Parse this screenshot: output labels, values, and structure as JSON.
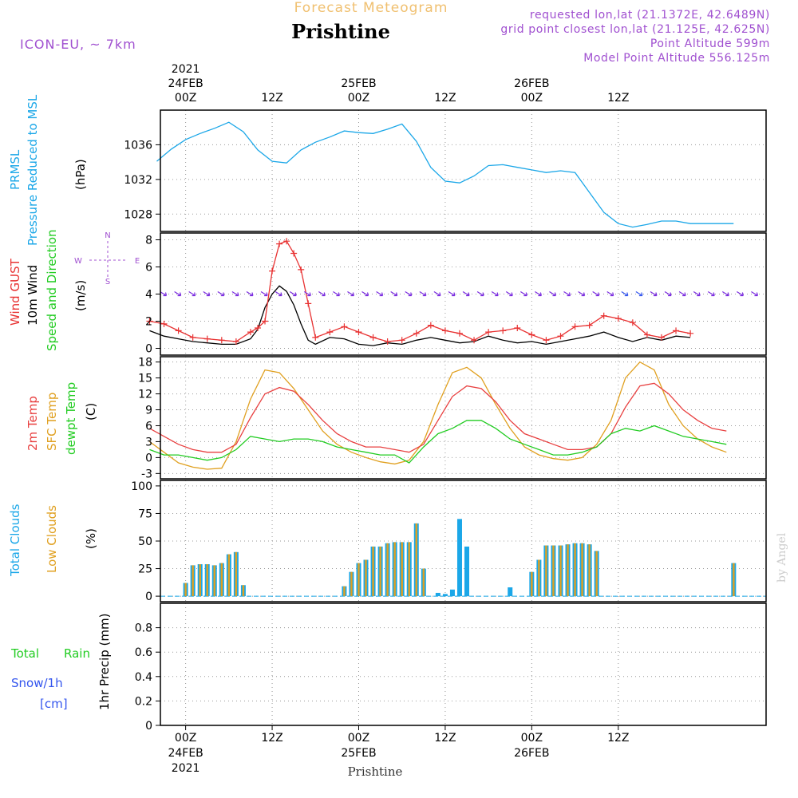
{
  "header": {
    "title": "Prishtine",
    "subtitle": "Forecast Meteogram",
    "model": "ICON-EU, ~ 7km",
    "requested": "requested lon,lat (21.1372E, 42.6489N)",
    "gridpoint": "grid point closest lon,lat (21.125E, 42.625N)",
    "altitude": "Point Altitude 599m",
    "model_altitude": "Model Point Altitude 556.125m",
    "watermark": "by Angel",
    "footer": "Prishtine"
  },
  "time_axis": {
    "top_labels": [
      {
        "l1": "2021",
        "l2": "24FEB",
        "l3": "00Z"
      },
      {
        "l1": "",
        "l2": "",
        "l3": "12Z"
      },
      {
        "l1": "",
        "l2": "25FEB",
        "l3": "00Z"
      },
      {
        "l1": "",
        "l2": "",
        "l3": "12Z"
      },
      {
        "l1": "",
        "l2": "26FEB",
        "l3": "00Z"
      },
      {
        "l1": "",
        "l2": "",
        "l3": "12Z"
      }
    ],
    "bottom_labels": [
      {
        "l1": "00Z",
        "l2": "24FEB",
        "l3": "2021"
      },
      {
        "l1": "12Z",
        "l2": "",
        "l3": ""
      },
      {
        "l1": "00Z",
        "l2": "25FEB",
        "l3": ""
      },
      {
        "l1": "12Z",
        "l2": "",
        "l3": ""
      },
      {
        "l1": "00Z",
        "l2": "26FEB",
        "l3": ""
      },
      {
        "l1": "12Z",
        "l2": "",
        "l3": ""
      }
    ]
  },
  "panel_labels": {
    "pressure": {
      "a": "PRMSL",
      "b": "Pressure Reduced to MSL",
      "unit": "(hPa)"
    },
    "wind": {
      "a": "Wind GUST",
      "b": "10m Wind",
      "c": "Speed and Direction",
      "unit": "(m/s)",
      "compass_n": "N",
      "compass_s": "S",
      "compass_w": "W",
      "compass_e": "E"
    },
    "temp": {
      "a": "2m Temp",
      "b": "SFC Temp",
      "c": "dewpt Temp",
      "unit": "(C)"
    },
    "clouds": {
      "a": "Total Clouds",
      "b": "Low Clouds",
      "unit": "(%)"
    },
    "precip": {
      "a": "Total",
      "a2": "Rain",
      "b": "Snow/1h",
      "c": "[cm]",
      "unit": "1hr Precip (mm)"
    }
  },
  "colors": {
    "pressure": "#1ba7e8",
    "gust": "#e83232",
    "wind": "#000000",
    "temp2m": "#e84040",
    "sfc": "#e0a020",
    "dewpt": "#22cc22",
    "total_clouds": "#1ba7e8",
    "low_clouds": "#e0a020",
    "rain": "#22cc22",
    "snow": "#3355ee",
    "header": "#a050d0",
    "subtitle": "#f0c070"
  },
  "chart_data": [
    {
      "type": "line",
      "panel": "pressure",
      "x_hours": [
        -4,
        -2,
        0,
        2,
        4,
        6,
        8,
        10,
        12,
        14,
        16,
        18,
        20,
        22,
        24,
        26,
        28,
        30,
        32,
        34,
        36,
        38,
        40,
        42,
        44,
        46,
        48,
        50,
        52,
        54,
        56,
        58,
        60,
        62,
        64,
        66,
        68,
        70,
        72,
        74,
        76
      ],
      "series": [
        {
          "name": "PRMSL",
          "values": [
            1034.1,
            1035.5,
            1036.6,
            1037.3,
            1037.9,
            1038.6,
            1037.5,
            1035.4,
            1034.1,
            1033.9,
            1035.4,
            1036.3,
            1036.9,
            1037.6,
            1037.4,
            1037.3,
            1037.8,
            1038.4,
            1036.4,
            1033.4,
            1031.8,
            1031.6,
            1032.4,
            1033.6,
            1033.7,
            1033.4,
            1033.1,
            1032.8,
            1033.0,
            1032.8,
            1030.5,
            1028.2,
            1026.9,
            1026.5,
            1026.8,
            1027.2,
            1027.2,
            1026.9,
            1026.9,
            1026.9,
            1026.9
          ]
        }
      ],
      "ylim": [
        1026,
        1040
      ],
      "yticks": [
        1028,
        1032,
        1036
      ]
    },
    {
      "type": "line",
      "panel": "wind",
      "x_hours": [
        -5,
        -3,
        -1,
        1,
        3,
        5,
        7,
        9,
        10,
        11,
        12,
        13,
        14,
        15,
        16,
        17,
        18,
        20,
        22,
        24,
        26,
        28,
        30,
        32,
        34,
        36,
        38,
        40,
        42,
        44,
        46,
        48,
        50,
        52,
        54,
        56,
        58,
        60,
        62,
        64,
        66,
        68,
        70
      ],
      "series": [
        {
          "name": "Wind GUST",
          "values": [
            2.0,
            1.8,
            1.3,
            0.8,
            0.7,
            0.6,
            0.5,
            1.2,
            1.5,
            2.0,
            5.7,
            7.7,
            7.9,
            7.0,
            5.8,
            3.3,
            0.8,
            1.2,
            1.6,
            1.2,
            0.8,
            0.5,
            0.6,
            1.1,
            1.7,
            1.3,
            1.1,
            0.6,
            1.2,
            1.3,
            1.5,
            1.0,
            0.6,
            0.9,
            1.6,
            1.7,
            2.4,
            2.2,
            1.9,
            1.0,
            0.8,
            1.3,
            1.1
          ]
        },
        {
          "name": "10m Wind",
          "values": [
            1.3,
            0.9,
            0.7,
            0.5,
            0.4,
            0.3,
            0.3,
            0.7,
            1.4,
            3.0,
            4.0,
            4.6,
            4.2,
            3.2,
            1.8,
            0.6,
            0.3,
            0.8,
            0.7,
            0.3,
            0.2,
            0.4,
            0.3,
            0.6,
            0.8,
            0.6,
            0.4,
            0.5,
            0.9,
            0.6,
            0.4,
            0.5,
            0.3,
            0.5,
            0.7,
            0.9,
            1.2,
            0.8,
            0.5,
            0.8,
            0.6,
            0.9,
            0.8
          ]
        }
      ],
      "ylim": [
        -0.5,
        8.5
      ],
      "yticks": [
        0,
        2,
        4,
        6,
        8
      ]
    },
    {
      "type": "line",
      "panel": "temp",
      "x_hours": [
        -5,
        -3,
        -1,
        1,
        3,
        5,
        7,
        9,
        11,
        13,
        15,
        17,
        19,
        21,
        23,
        25,
        27,
        29,
        31,
        33,
        35,
        37,
        39,
        41,
        43,
        45,
        47,
        49,
        51,
        53,
        55,
        57,
        59,
        61,
        63,
        65,
        67,
        69,
        71,
        73,
        75
      ],
      "series": [
        {
          "name": "2m Temp",
          "values": [
            5.5,
            4.0,
            2.5,
            1.5,
            1.0,
            1.0,
            2.5,
            7.5,
            12.0,
            13.2,
            12.5,
            10.0,
            7.0,
            4.5,
            3.0,
            2.0,
            2.0,
            1.5,
            1.0,
            2.5,
            7.0,
            11.5,
            13.5,
            13.0,
            10.5,
            7.0,
            4.5,
            3.5,
            2.5,
            1.5,
            1.5,
            2.0,
            4.5,
            9.5,
            13.5,
            14.0,
            12.0,
            9.0,
            7.0,
            5.5,
            5.0
          ]
        },
        {
          "name": "SFC Temp",
          "values": [
            3.0,
            1.0,
            -1.0,
            -1.8,
            -2.2,
            -2.0,
            3.0,
            11.0,
            16.5,
            16.0,
            13.0,
            9.0,
            5.0,
            2.5,
            1.0,
            0.0,
            -0.8,
            -1.2,
            -0.5,
            3.0,
            10.0,
            16.0,
            17.0,
            15.0,
            10.0,
            5.5,
            2.0,
            0.5,
            -0.2,
            -0.5,
            0.0,
            2.5,
            7.0,
            15.0,
            18.0,
            16.5,
            10.0,
            6.0,
            3.5,
            2.0,
            1.0
          ]
        },
        {
          "name": "dewpt Temp",
          "values": [
            1.5,
            0.5,
            0.5,
            0.0,
            -0.5,
            0.0,
            1.5,
            4.0,
            3.5,
            3.0,
            3.5,
            3.5,
            3.0,
            2.0,
            1.5,
            1.0,
            0.5,
            0.5,
            -1.0,
            2.0,
            4.5,
            5.5,
            7.0,
            7.0,
            5.5,
            3.5,
            2.5,
            1.5,
            0.5,
            0.5,
            1.0,
            2.0,
            4.5,
            5.5,
            5.0,
            6.0,
            5.0,
            4.0,
            3.5,
            3.0,
            2.5
          ]
        }
      ],
      "ylim": [
        -4,
        19
      ],
      "yticks": [
        -3,
        0,
        3,
        6,
        9,
        12,
        15,
        18
      ]
    },
    {
      "type": "bar",
      "panel": "clouds",
      "x_hours": [
        0,
        1,
        2,
        3,
        4,
        5,
        6,
        7,
        8,
        9,
        22,
        23,
        24,
        25,
        26,
        27,
        28,
        29,
        30,
        31,
        32,
        33,
        35,
        36,
        37,
        38,
        39,
        45,
        48,
        49,
        50,
        51,
        52,
        53,
        54,
        55,
        56,
        57,
        76
      ],
      "series": [
        {
          "name": "Total Clouds",
          "values": [
            12,
            28,
            29,
            29,
            28,
            30,
            38,
            40,
            10,
            0,
            9,
            22,
            30,
            33,
            45,
            45,
            48,
            49,
            49,
            49,
            66,
            25,
            3,
            2,
            6,
            70,
            45,
            8,
            22,
            33,
            46,
            46,
            46,
            47,
            48,
            48,
            47,
            41,
            30
          ]
        },
        {
          "name": "Low Clouds",
          "values": [
            12,
            28,
            29,
            29,
            28,
            30,
            38,
            40,
            10,
            0,
            9,
            22,
            30,
            33,
            45,
            45,
            48,
            49,
            49,
            49,
            66,
            25,
            0,
            0,
            0,
            0,
            0,
            0,
            22,
            33,
            46,
            46,
            46,
            47,
            48,
            48,
            47,
            41,
            30
          ]
        }
      ],
      "ylim": [
        -5,
        105
      ],
      "yticks": [
        0,
        25,
        50,
        75,
        100
      ]
    },
    {
      "type": "bar",
      "panel": "precip",
      "series": [
        {
          "name": "Total Rain",
          "values": []
        },
        {
          "name": "Snow/1h",
          "values": []
        }
      ],
      "ylim": [
        0,
        1.0
      ],
      "yticks": [
        0,
        0.2,
        0.4,
        0.6,
        0.8
      ]
    }
  ]
}
